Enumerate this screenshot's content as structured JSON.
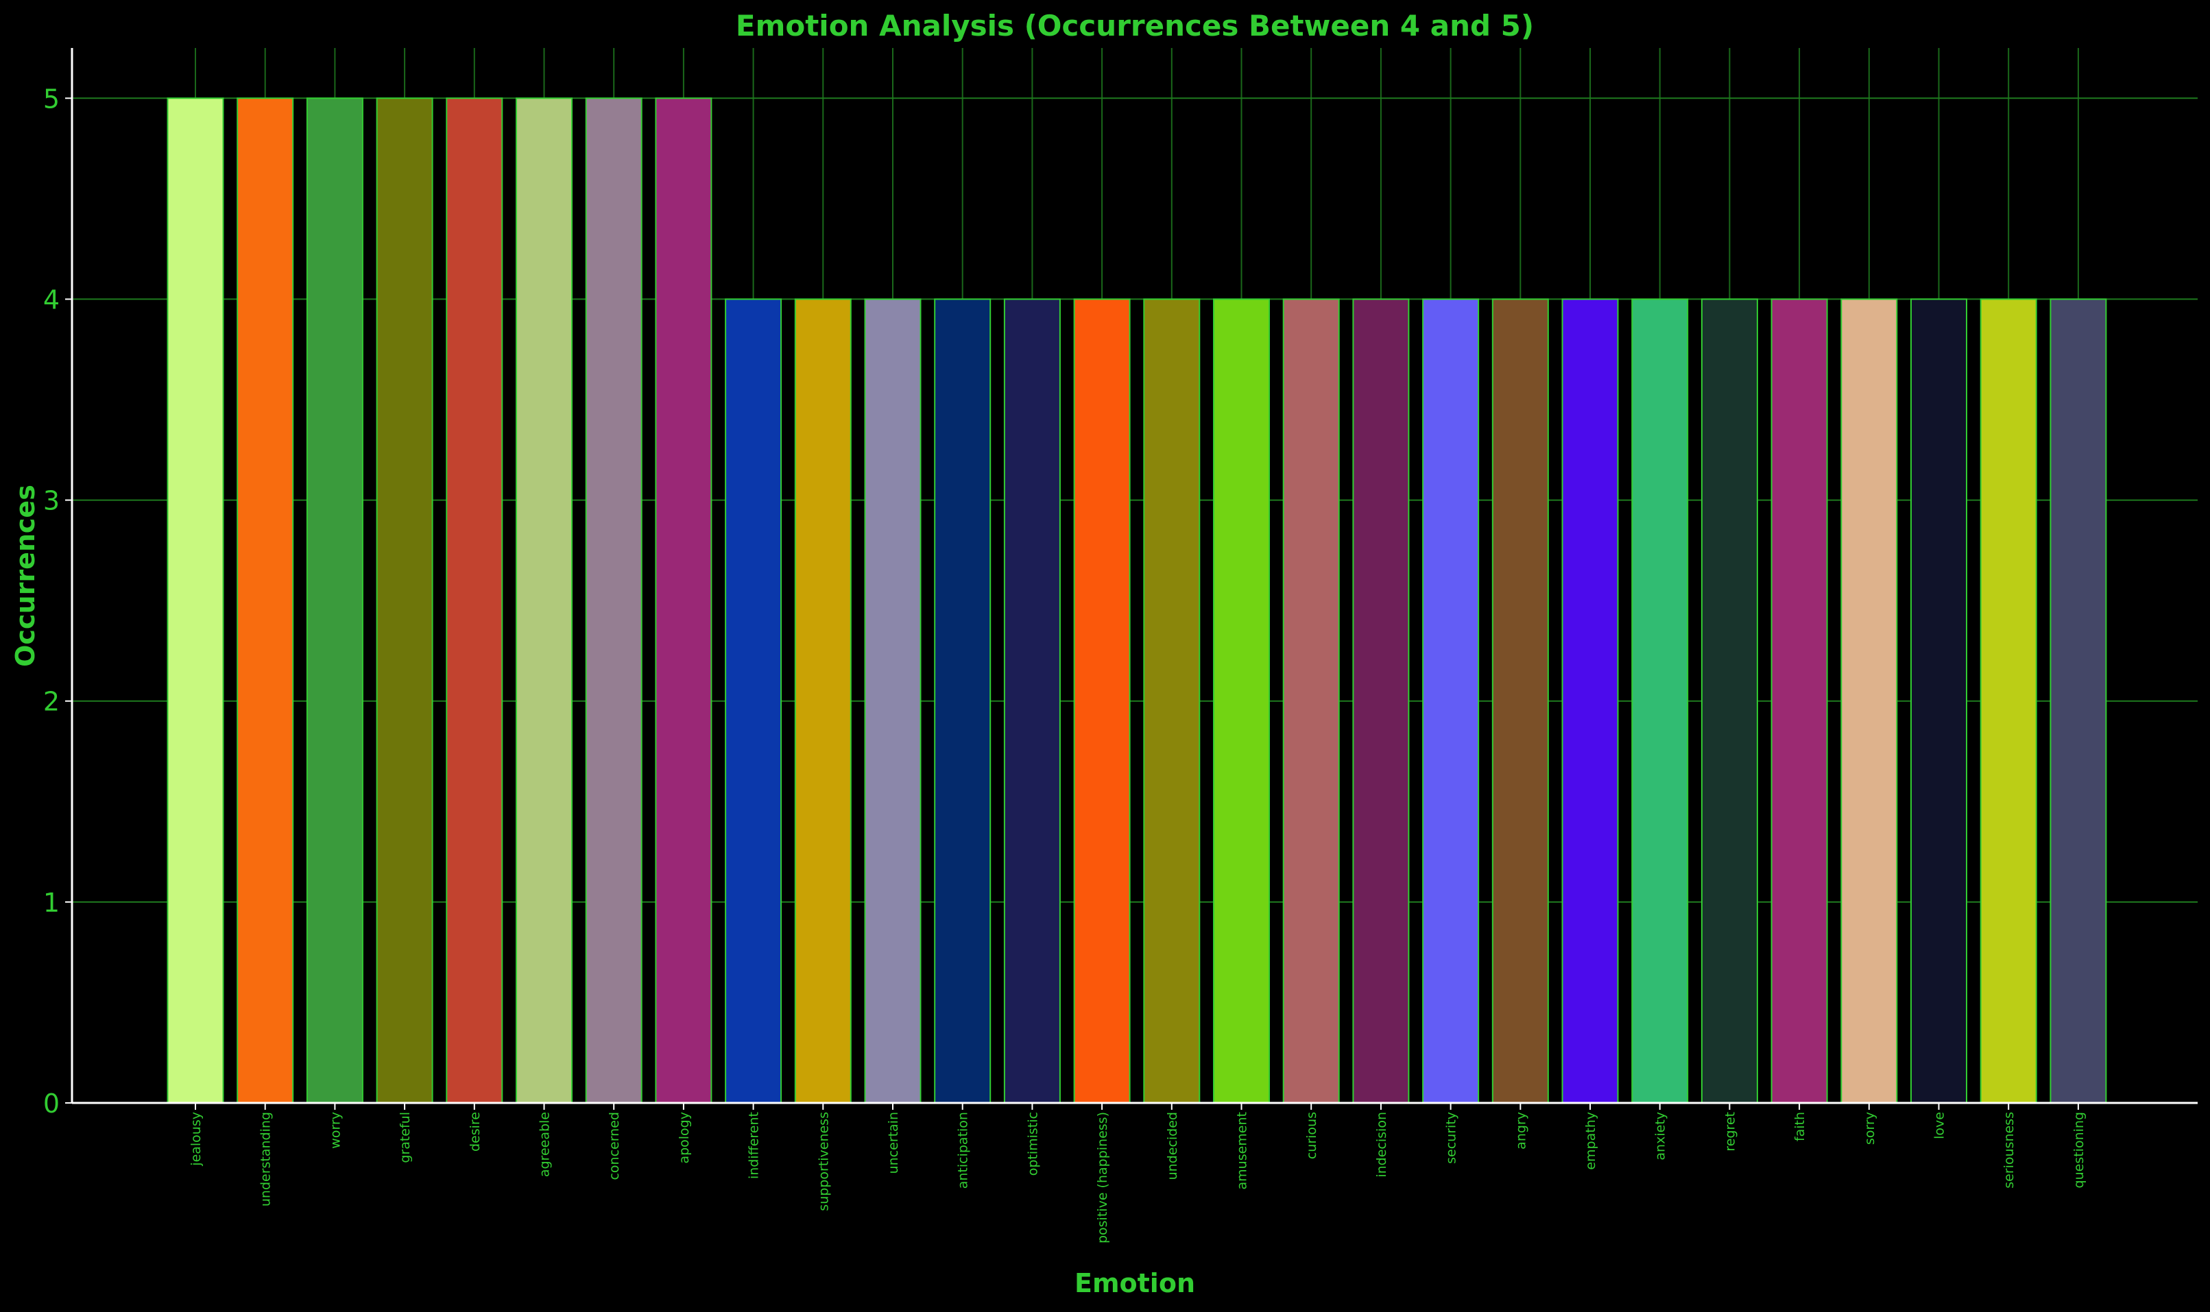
{
  "chart_data": {
    "type": "bar",
    "title": "Emotion Analysis (Occurrences Between 4 and 5)",
    "xlabel": "Emotion",
    "ylabel": "Occurrences",
    "ylim": [
      0,
      5.25
    ],
    "yticks": [
      "0",
      "1",
      "2",
      "3",
      "4",
      "5"
    ],
    "grid": true,
    "categories": [
      "jealousy",
      "understanding",
      "worry",
      "grateful",
      "desire",
      "agreeable",
      "concerned",
      "apology",
      "indifferent",
      "supportiveness",
      "uncertain",
      "anticipation",
      "optimistic",
      "positive (happiness)",
      "undecided",
      "amusement",
      "curious",
      "indecision",
      "security",
      "angry",
      "empathy",
      "anxiety",
      "regret",
      "faith",
      "sorry",
      "love",
      "seriousness",
      "questioning"
    ],
    "values": [
      5,
      5,
      5,
      5,
      5,
      5,
      5,
      5,
      4,
      4,
      4,
      4,
      4,
      4,
      4,
      4,
      4,
      4,
      4,
      4,
      4,
      4,
      4,
      4,
      4,
      4,
      4,
      4
    ],
    "colors": [
      "#c8f97f",
      "#f86c0f",
      "#3a9b3c",
      "#6e760a",
      "#c2432f",
      "#b0c97b",
      "#957e92",
      "#9a2876",
      "#0b38ab",
      "#c9a205",
      "#8b87aa",
      "#042a6c",
      "#1c1e55",
      "#fb580b",
      "#8a860b",
      "#72d413",
      "#ae6363",
      "#6e2058",
      "#635df5",
      "#7b5028",
      "#4c0bec",
      "#31bc72",
      "#18342c",
      "#9b2a72",
      "#deb28c",
      "#10132a",
      "#bbce16",
      "#444767"
    ]
  },
  "theme": {
    "background": "#000000",
    "text_color": "#32cd32",
    "grid_color": "#1e7a1e",
    "bar_edge": "#32cd32",
    "axis_color": "#ffffff"
  }
}
